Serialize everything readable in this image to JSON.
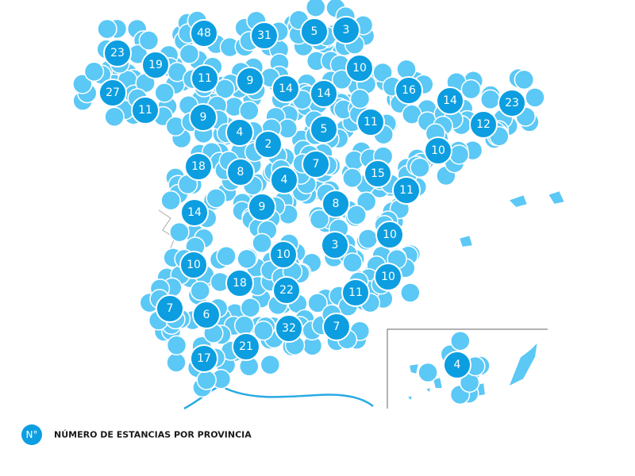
{
  "markers": [
    48,
    31,
    5,
    3,
    23,
    19,
    11,
    9,
    10,
    27,
    11,
    14,
    14,
    16,
    14,
    23,
    9,
    4,
    5,
    11,
    12,
    2,
    10,
    18,
    8,
    7,
    4,
    15,
    11,
    9,
    8,
    14,
    3,
    10,
    10,
    10,
    18,
    22,
    10,
    11,
    7,
    6,
    32,
    7,
    21,
    17,
    4
  ],
  "legend": {
    "symbol": "N°",
    "text": "NÚMERO DE ESTANCIAS POR PROVINCIA"
  }
}
